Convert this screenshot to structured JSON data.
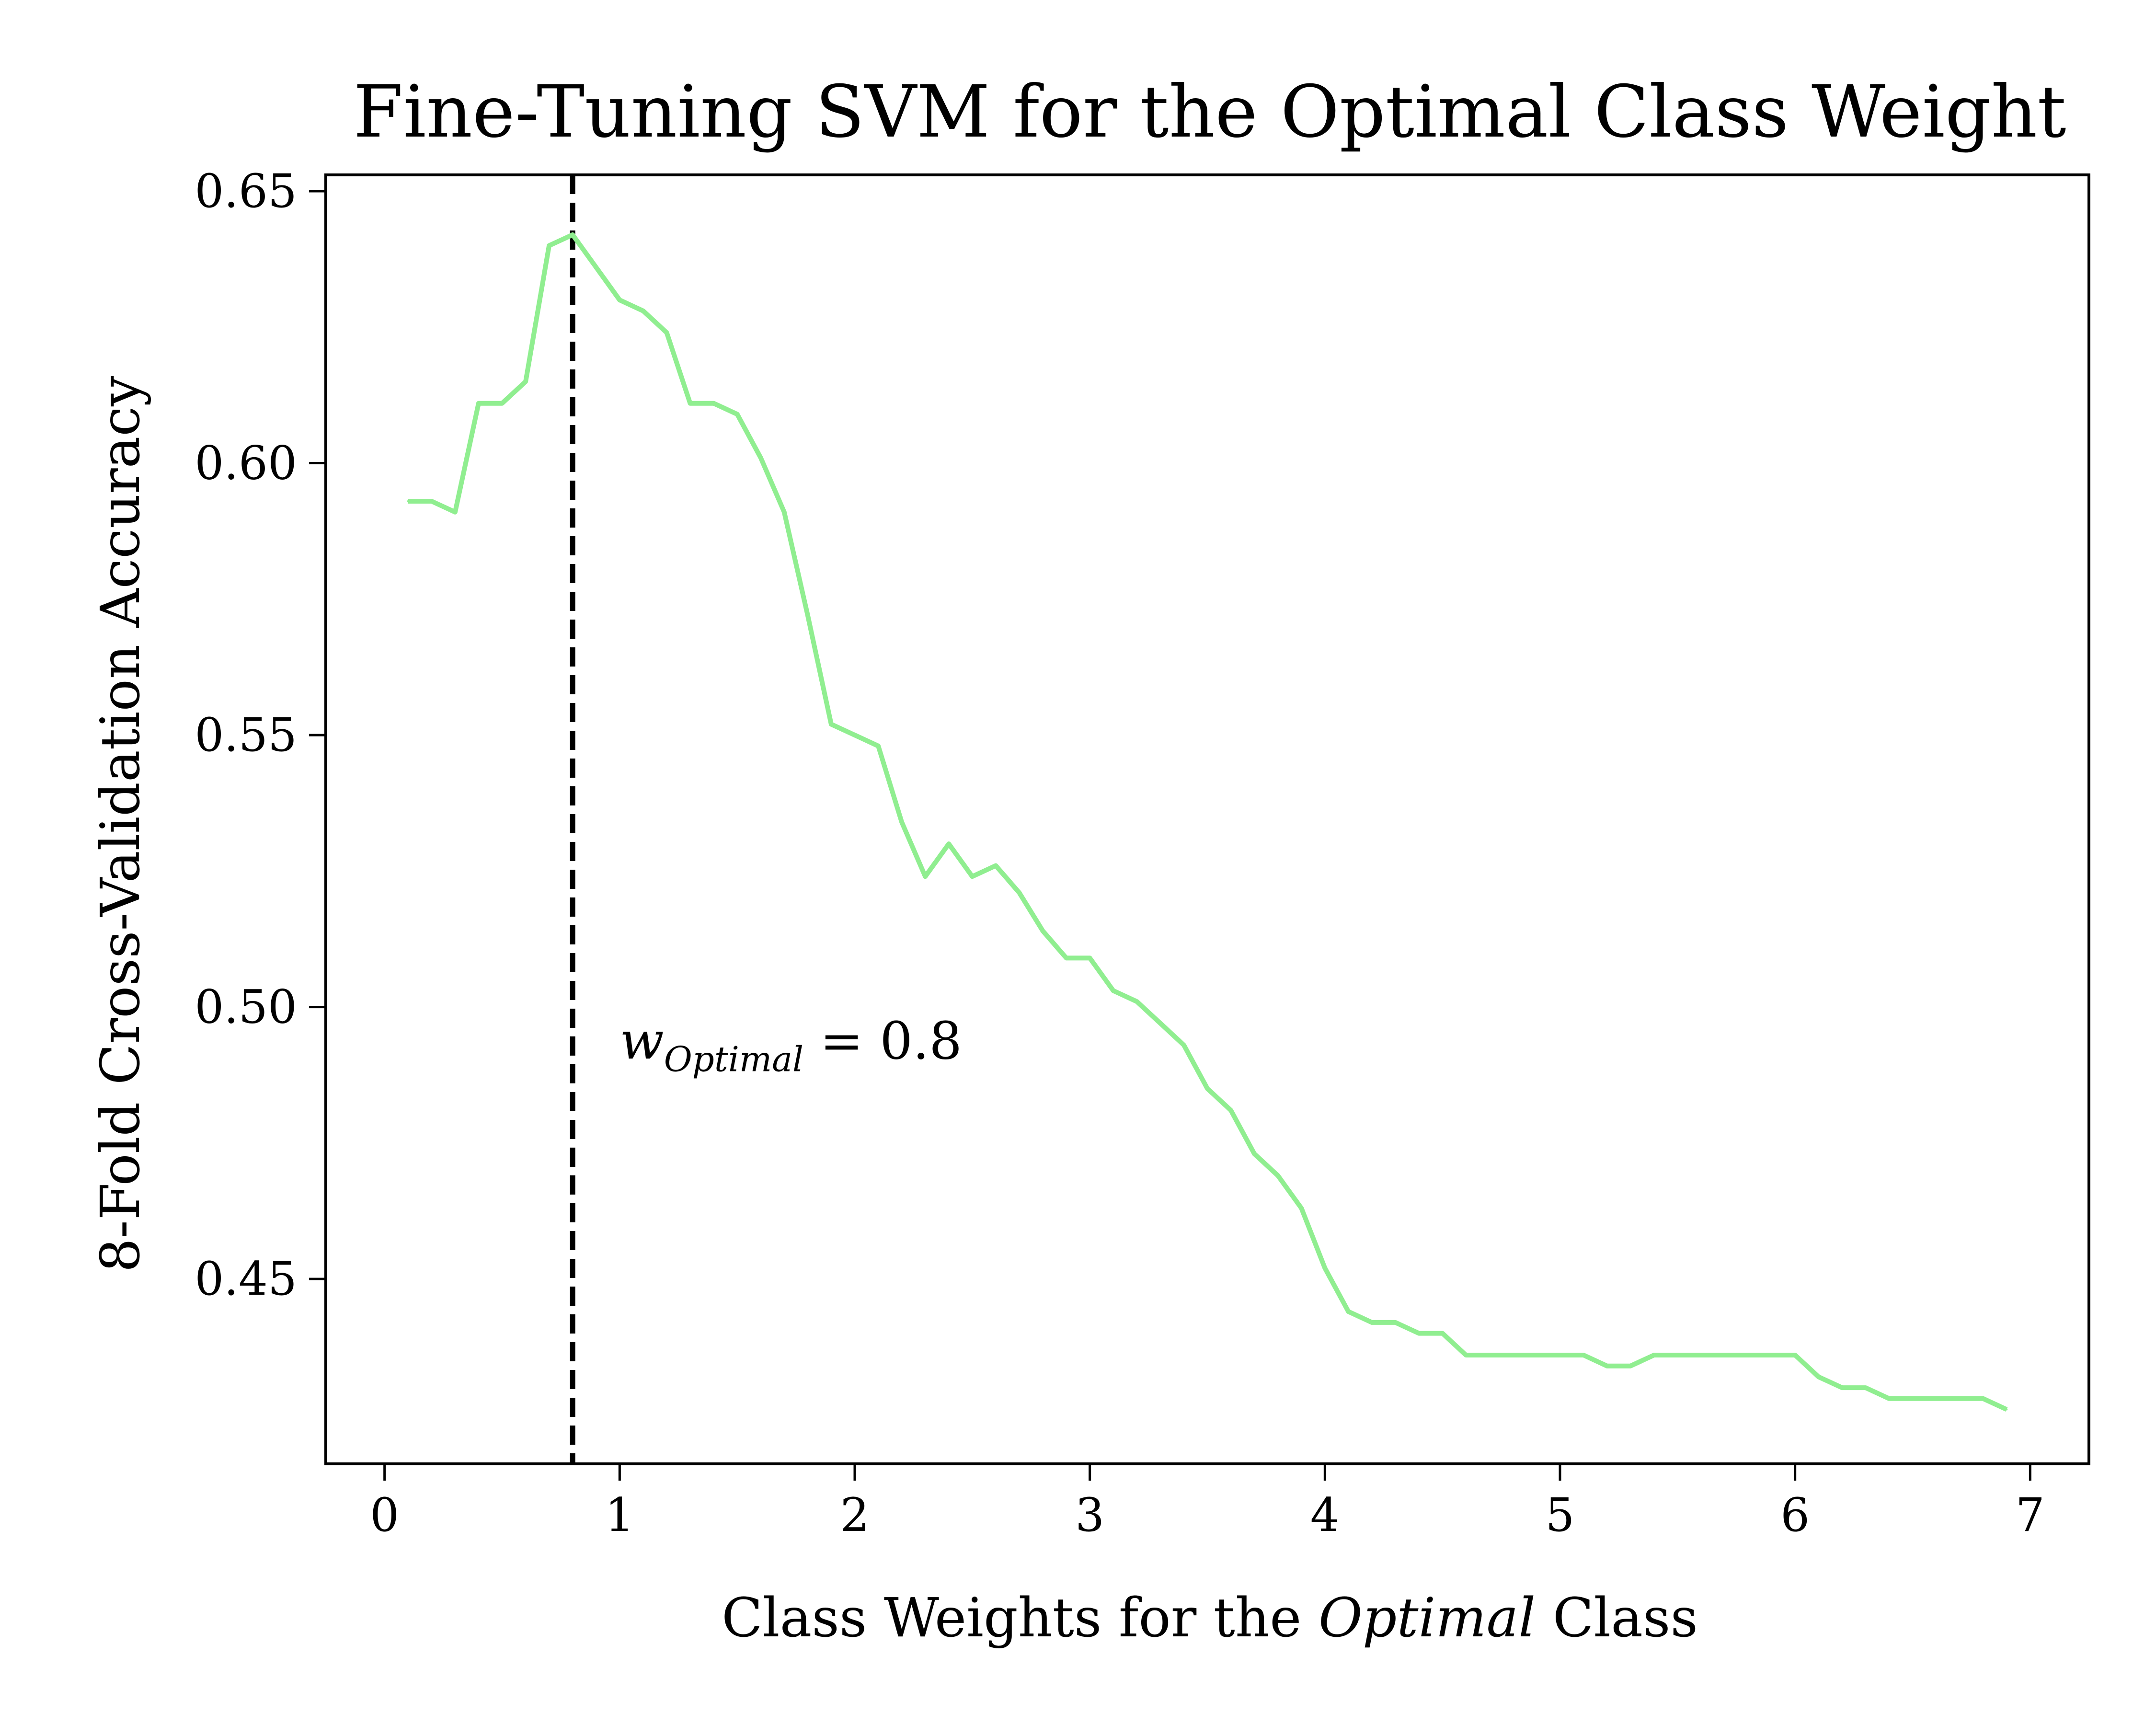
{
  "chart_data": {
    "type": "line",
    "title": "Fine-Tuning SVM for the Optimal Class Weight",
    "xlabel": {
      "prefix": "Class Weights for the ",
      "emphasis": "Optimal",
      "suffix": " Class"
    },
    "ylabel": "8-Fold Cross-Validation Accuracy",
    "xlim": [
      -0.25,
      7.25
    ],
    "ylim": [
      0.416,
      0.653
    ],
    "xticks": [
      0,
      1,
      2,
      3,
      4,
      5,
      6,
      7
    ],
    "xtick_labels": [
      "0",
      "1",
      "2",
      "3",
      "4",
      "5",
      "6",
      "7"
    ],
    "yticks": [
      0.45,
      0.5,
      0.55,
      0.6,
      0.65
    ],
    "ytick_labels": [
      "0.45",
      "0.50",
      "0.55",
      "0.60",
      "0.65"
    ],
    "grid": false,
    "series": [
      {
        "color": "#90ee90",
        "x": [
          0.1,
          0.2,
          0.3,
          0.4,
          0.5,
          0.6,
          0.7,
          0.8,
          0.9,
          1.0,
          1.1,
          1.2,
          1.3,
          1.4,
          1.5,
          1.6,
          1.7,
          1.8,
          1.9,
          2.0,
          2.1,
          2.2,
          2.3,
          2.4,
          2.5,
          2.6,
          2.7,
          2.8,
          2.9,
          3.0,
          3.1,
          3.2,
          3.3,
          3.4,
          3.5,
          3.6,
          3.7,
          3.8,
          3.9,
          4.0,
          4.1,
          4.2,
          4.3,
          4.4,
          4.5,
          4.6,
          4.7,
          4.8,
          4.9,
          5.0,
          5.1,
          5.2,
          5.3,
          5.4,
          5.5,
          5.6,
          5.7,
          5.8,
          5.9,
          6.0,
          6.1,
          6.2,
          6.3,
          6.4,
          6.5,
          6.6,
          6.7,
          6.8,
          6.9
        ],
        "y": [
          0.593,
          0.593,
          0.591,
          0.611,
          0.611,
          0.615,
          0.64,
          0.642,
          0.636,
          0.63,
          0.628,
          0.624,
          0.611,
          0.611,
          0.609,
          0.601,
          0.591,
          0.572,
          0.552,
          0.55,
          0.548,
          0.534,
          0.524,
          0.53,
          0.524,
          0.526,
          0.521,
          0.514,
          0.509,
          0.509,
          0.503,
          0.501,
          0.497,
          0.493,
          0.485,
          0.481,
          0.473,
          0.469,
          0.463,
          0.452,
          0.444,
          0.442,
          0.442,
          0.44,
          0.44,
          0.436,
          0.436,
          0.436,
          0.436,
          0.436,
          0.436,
          0.434,
          0.434,
          0.436,
          0.436,
          0.436,
          0.436,
          0.436,
          0.436,
          0.436,
          0.432,
          0.43,
          0.43,
          0.428,
          0.428,
          0.428,
          0.428,
          0.428,
          0.426
        ]
      }
    ],
    "vline": {
      "x": 0.8,
      "color": "#000000",
      "style": "dashed"
    },
    "annotation": {
      "base": "w",
      "subscript": "Optimal",
      "rest": " = 0.8",
      "x": 1.0,
      "y": 0.4905
    }
  }
}
